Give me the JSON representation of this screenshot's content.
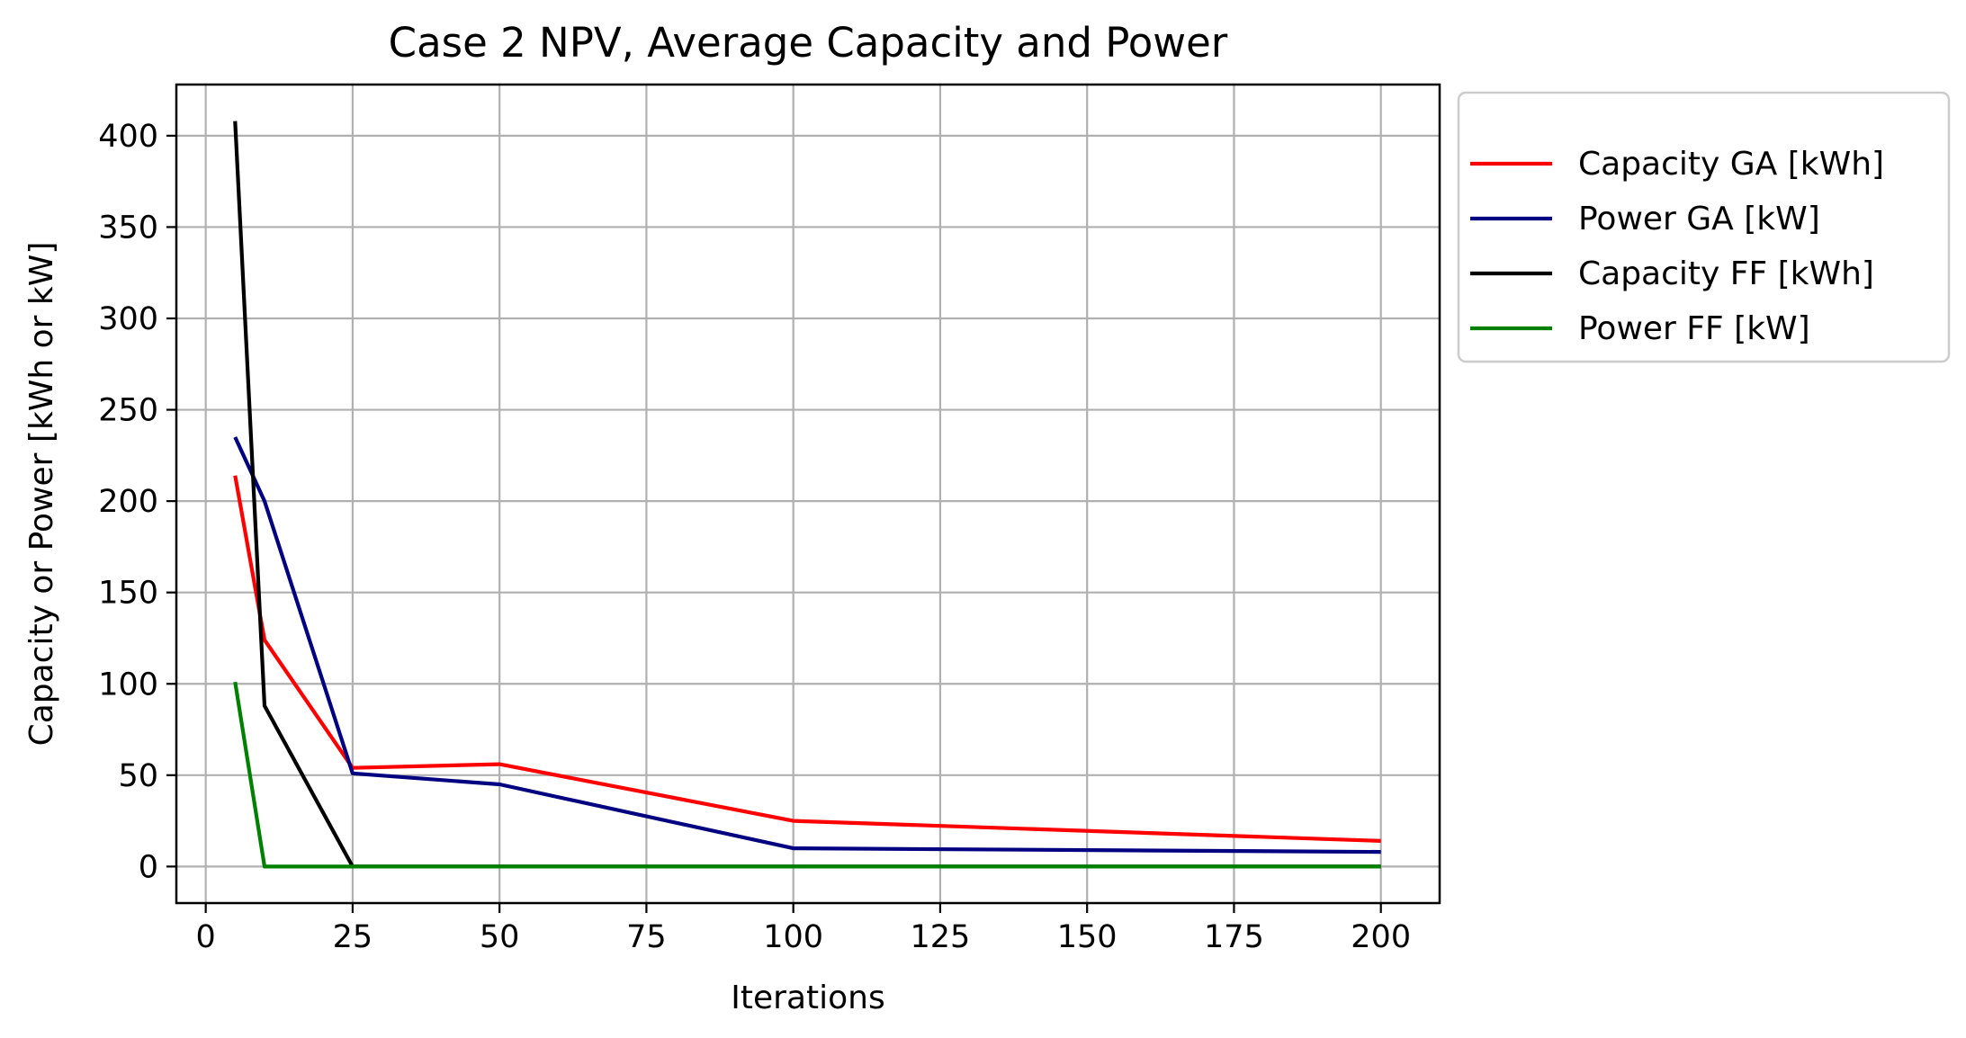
{
  "chart_data": {
    "type": "line",
    "title": "Case 2 NPV, Average Capacity and Power",
    "xlabel": "Iterations",
    "ylabel": "Capacity or Power [kWh or kW]",
    "xlim": [
      -5,
      210
    ],
    "ylim": [
      -20,
      428
    ],
    "x_ticks": [
      0,
      25,
      50,
      75,
      100,
      125,
      150,
      175,
      200
    ],
    "y_ticks": [
      0,
      50,
      100,
      150,
      200,
      250,
      300,
      350,
      400
    ],
    "grid": true,
    "legend_position": "outside-upper-right",
    "x": [
      5,
      10,
      25,
      50,
      100,
      200
    ],
    "series": [
      {
        "name": "Capacity GA [kWh]",
        "color": "#ff0000",
        "values": [
          214,
          124,
          54,
          56,
          25,
          14
        ]
      },
      {
        "name": "Power GA [kW]",
        "color": "#000080",
        "values": [
          235,
          200,
          51,
          45,
          10,
          8
        ]
      },
      {
        "name": "Capacity FF [kWh]",
        "color": "#000000",
        "values": [
          408,
          88,
          0,
          0,
          0,
          0
        ]
      },
      {
        "name": "Power FF [kW]",
        "color": "#008000",
        "values": [
          101,
          0,
          0,
          0,
          0,
          0
        ]
      }
    ]
  }
}
